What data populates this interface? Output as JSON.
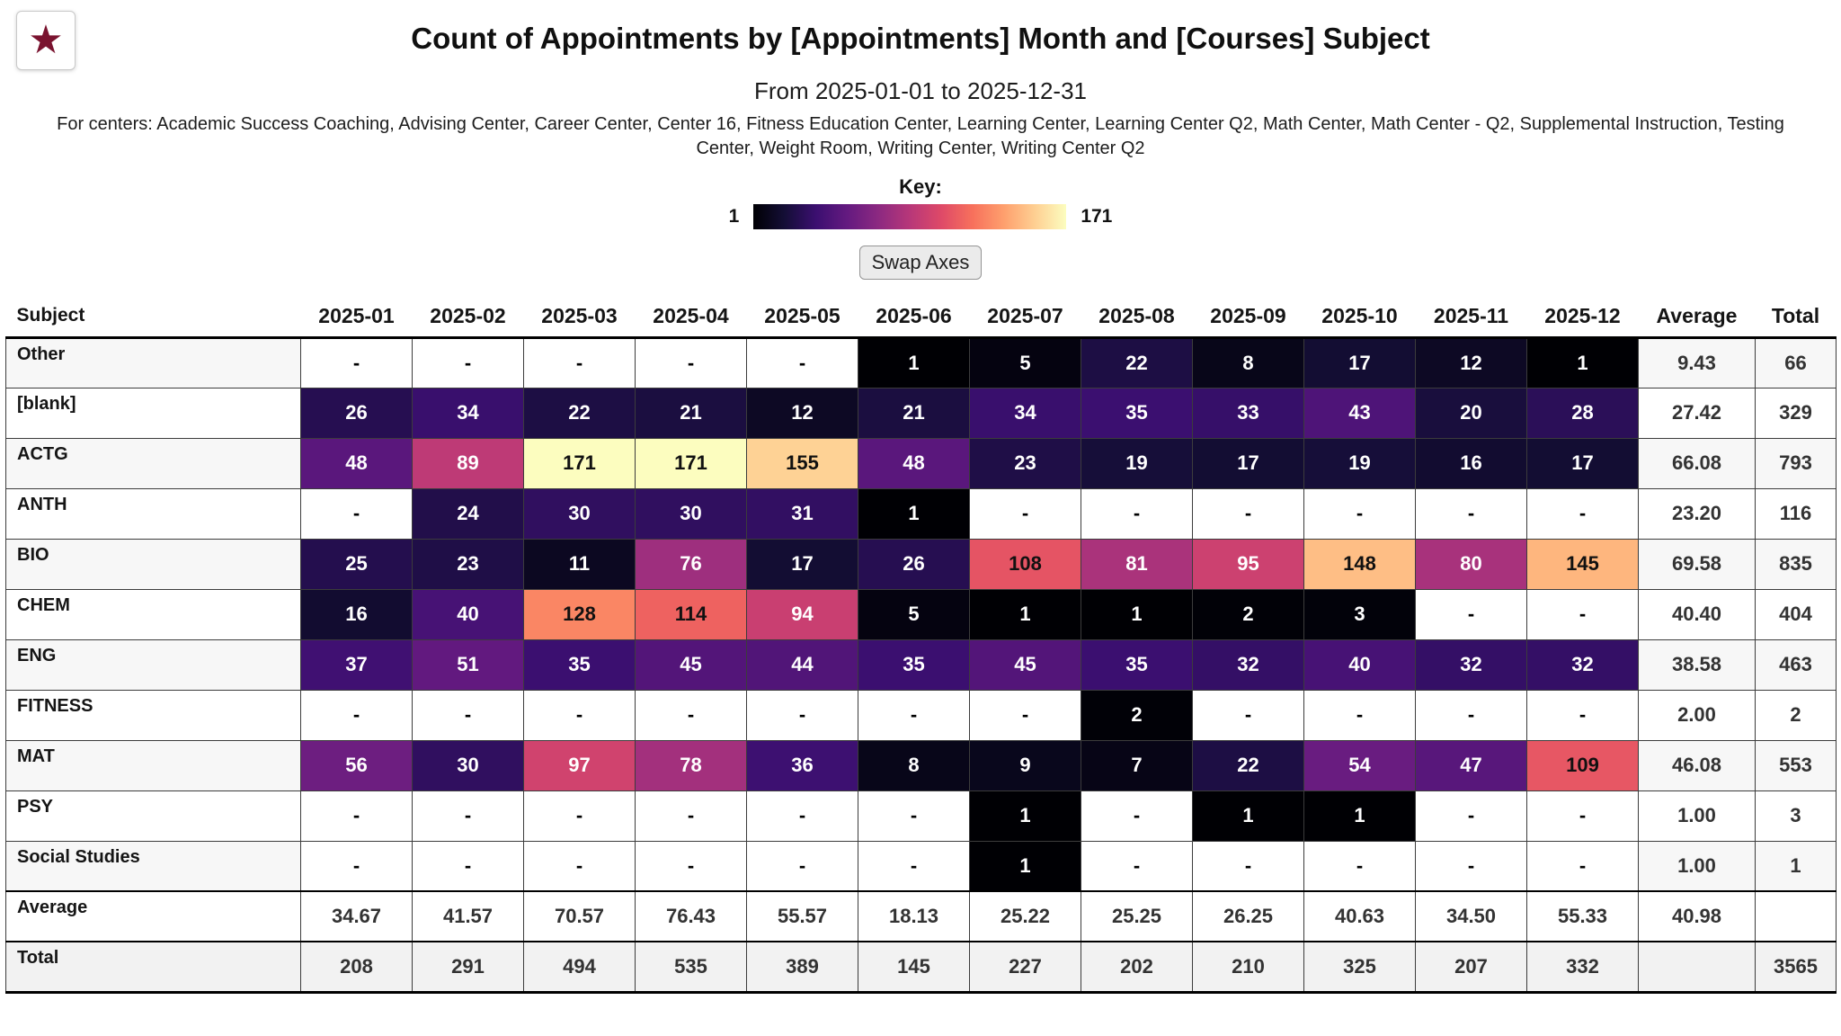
{
  "icons": {
    "star": "★"
  },
  "header": {
    "title": "Count of Appointments by [Appointments] Month and [Courses] Subject",
    "date_range": "From 2025-01-01 to 2025-12-31",
    "centers": "For centers: Academic Success Coaching, Advising Center, Career Center, Center 16, Fitness Education Center, Learning Center, Learning Center Q2, Math Center, Math Center - Q2, Supplemental Instruction, Testing Center, Weight Room, Writing Center, Writing Center Q2"
  },
  "key": {
    "label": "Key:",
    "min": "1",
    "max": "171"
  },
  "controls": {
    "swap_axes_label": "Swap Axes"
  },
  "colorscale": {
    "type": "magma",
    "min": 1,
    "max": 171
  },
  "table": {
    "subject_header": "Subject",
    "month_headers": [
      "2025-01",
      "2025-02",
      "2025-03",
      "2025-04",
      "2025-05",
      "2025-06",
      "2025-07",
      "2025-08",
      "2025-09",
      "2025-10",
      "2025-11",
      "2025-12"
    ],
    "average_header": "Average",
    "total_header": "Total",
    "rows": [
      {
        "subject": "Other",
        "values": [
          null,
          null,
          null,
          null,
          null,
          1,
          5,
          22,
          8,
          17,
          12,
          1
        ],
        "average": "9.43",
        "total": "66"
      },
      {
        "subject": "[blank]",
        "values": [
          26,
          34,
          22,
          21,
          12,
          21,
          34,
          35,
          33,
          43,
          20,
          28
        ],
        "average": "27.42",
        "total": "329"
      },
      {
        "subject": "ACTG",
        "values": [
          48,
          89,
          171,
          171,
          155,
          48,
          23,
          19,
          17,
          19,
          16,
          17
        ],
        "average": "66.08",
        "total": "793"
      },
      {
        "subject": "ANTH",
        "values": [
          null,
          24,
          30,
          30,
          31,
          1,
          null,
          null,
          null,
          null,
          null,
          null
        ],
        "average": "23.20",
        "total": "116"
      },
      {
        "subject": "BIO",
        "values": [
          25,
          23,
          11,
          76,
          17,
          26,
          108,
          81,
          95,
          148,
          80,
          145
        ],
        "average": "69.58",
        "total": "835"
      },
      {
        "subject": "CHEM",
        "values": [
          16,
          40,
          128,
          114,
          94,
          5,
          1,
          1,
          2,
          3,
          null,
          null
        ],
        "average": "40.40",
        "total": "404"
      },
      {
        "subject": "ENG",
        "values": [
          37,
          51,
          35,
          45,
          44,
          35,
          45,
          35,
          32,
          40,
          32,
          32
        ],
        "average": "38.58",
        "total": "463"
      },
      {
        "subject": "FITNESS",
        "values": [
          null,
          null,
          null,
          null,
          null,
          null,
          null,
          2,
          null,
          null,
          null,
          null
        ],
        "average": "2.00",
        "total": "2"
      },
      {
        "subject": "MAT",
        "values": [
          56,
          30,
          97,
          78,
          36,
          8,
          9,
          7,
          22,
          54,
          47,
          109
        ],
        "average": "46.08",
        "total": "553"
      },
      {
        "subject": "PSY",
        "values": [
          null,
          null,
          null,
          null,
          null,
          null,
          1,
          null,
          1,
          1,
          null,
          null
        ],
        "average": "1.00",
        "total": "3"
      },
      {
        "subject": "Social Studies",
        "values": [
          null,
          null,
          null,
          null,
          null,
          null,
          1,
          null,
          null,
          null,
          null,
          null
        ],
        "average": "1.00",
        "total": "1"
      }
    ],
    "average_row": {
      "label": "Average",
      "values": [
        "34.67",
        "41.57",
        "70.57",
        "76.43",
        "55.57",
        "18.13",
        "25.22",
        "25.25",
        "26.25",
        "40.63",
        "34.50",
        "55.33"
      ],
      "overall_average": "40.98",
      "total": ""
    },
    "total_row": {
      "label": "Total",
      "values": [
        "208",
        "291",
        "494",
        "535",
        "389",
        "145",
        "227",
        "202",
        "210",
        "325",
        "207",
        "332"
      ],
      "average": "",
      "overall_total": "3565"
    }
  }
}
